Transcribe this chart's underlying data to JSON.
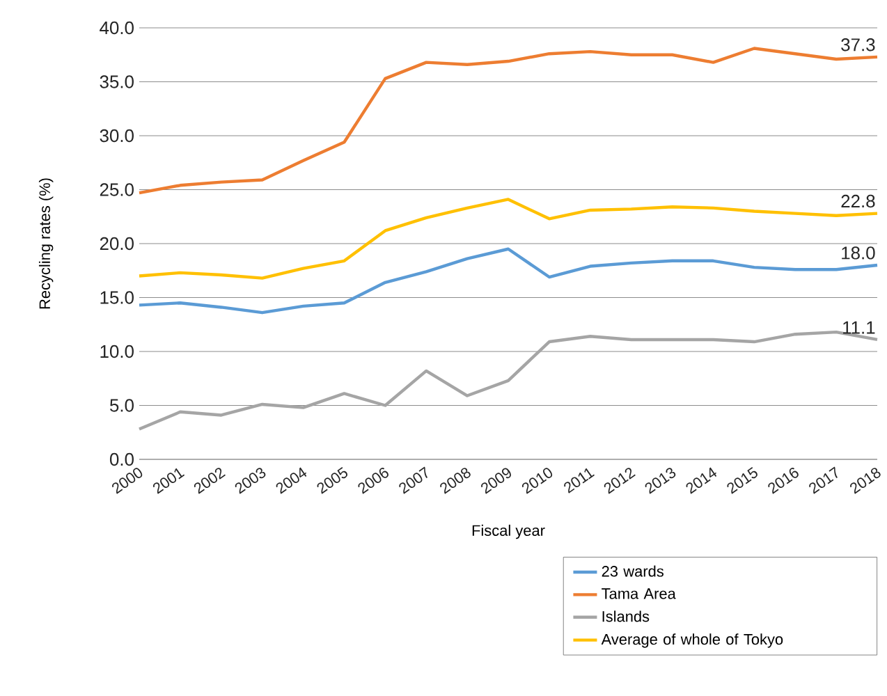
{
  "chart_data": {
    "type": "line",
    "xlabel": "Fiscal year",
    "ylabel": "Recycling rates (%)",
    "categories": [
      "2000",
      "2001",
      "2002",
      "2003",
      "2004",
      "2005",
      "2006",
      "2007",
      "2008",
      "2009",
      "2010",
      "2011",
      "2012",
      "2013",
      "2014",
      "2015",
      "2016",
      "2017",
      "2018"
    ],
    "ylim": [
      0,
      40
    ],
    "yticks": [
      {
        "value": 0,
        "label": "0.0"
      },
      {
        "value": 5,
        "label": "5.0"
      },
      {
        "value": 10,
        "label": "10.0"
      },
      {
        "value": 15,
        "label": "15.0"
      },
      {
        "value": 20,
        "label": "20.0"
      },
      {
        "value": 25,
        "label": "25.0"
      },
      {
        "value": 30,
        "label": "30.0"
      },
      {
        "value": 35,
        "label": "35.0"
      },
      {
        "value": 40,
        "label": "40.0"
      }
    ],
    "grid": "y",
    "legend": "bottom right",
    "marker": "none",
    "line_style": "solid",
    "series": [
      {
        "name": "23 wards",
        "color": "#5b9bd5",
        "values": [
          14.3,
          14.5,
          14.1,
          13.6,
          14.2,
          14.5,
          16.4,
          17.4,
          18.6,
          19.5,
          16.9,
          17.9,
          18.2,
          18.4,
          18.4,
          17.8,
          17.6,
          17.6,
          18.0
        ],
        "value_labels": [
          null,
          null,
          null,
          null,
          null,
          null,
          null,
          null,
          null,
          null,
          null,
          null,
          null,
          null,
          null,
          null,
          null,
          null,
          "18.0"
        ]
      },
      {
        "name": "Tama Area",
        "color": "#ed7d31",
        "values": [
          24.7,
          25.4,
          25.7,
          25.9,
          27.7,
          29.4,
          35.3,
          36.8,
          36.6,
          36.9,
          37.6,
          37.8,
          37.5,
          37.5,
          36.8,
          38.1,
          37.6,
          37.1,
          37.3
        ],
        "value_labels": [
          null,
          null,
          null,
          null,
          null,
          null,
          null,
          null,
          null,
          null,
          null,
          null,
          null,
          null,
          null,
          null,
          null,
          null,
          "37.3"
        ]
      },
      {
        "name": "Islands",
        "color": "#a5a5a5",
        "values": [
          2.8,
          4.4,
          4.1,
          5.1,
          4.8,
          6.1,
          5.0,
          8.2,
          5.9,
          7.3,
          10.9,
          11.4,
          11.1,
          11.1,
          11.1,
          10.9,
          11.6,
          11.8,
          11.1
        ],
        "value_labels": [
          null,
          null,
          null,
          null,
          null,
          null,
          null,
          null,
          null,
          null,
          null,
          null,
          null,
          null,
          null,
          null,
          null,
          null,
          "11.1"
        ]
      },
      {
        "name": "Average of whole of Tokyo",
        "color": "#ffc000",
        "values": [
          17.0,
          17.3,
          17.1,
          16.8,
          17.7,
          18.4,
          21.2,
          22.4,
          23.3,
          24.1,
          22.3,
          23.1,
          23.2,
          23.4,
          23.3,
          23.0,
          22.8,
          22.6,
          22.8
        ],
        "value_labels": [
          null,
          null,
          null,
          null,
          null,
          null,
          null,
          null,
          null,
          null,
          null,
          null,
          null,
          null,
          null,
          null,
          null,
          null,
          "22.8"
        ]
      }
    ]
  }
}
